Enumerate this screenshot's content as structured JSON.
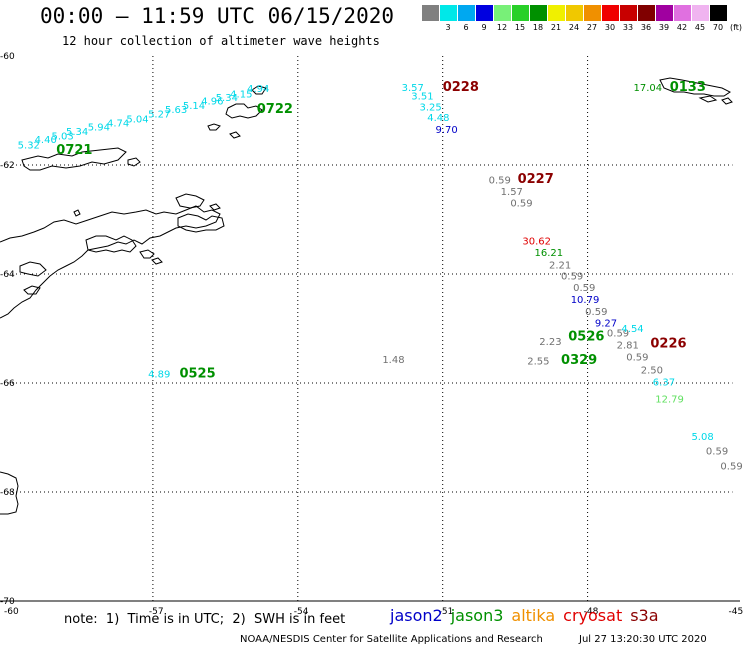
{
  "header": {
    "title": "00:00 – 11:59 UTC 06/15/2020",
    "subtitle": "12 hour collection of altimeter wave heights"
  },
  "color_scale": {
    "bins": [
      {
        "label": "",
        "color": "#808080"
      },
      {
        "label": "3",
        "color": "#00e8e8"
      },
      {
        "label": "6",
        "color": "#00a8f0"
      },
      {
        "label": "9",
        "color": "#0000e0"
      },
      {
        "label": "12",
        "color": "#78f078"
      },
      {
        "label": "15",
        "color": "#28d028"
      },
      {
        "label": "18",
        "color": "#009000"
      },
      {
        "label": "21",
        "color": "#f0f000"
      },
      {
        "label": "24",
        "color": "#f0c800"
      },
      {
        "label": "27",
        "color": "#f09000"
      },
      {
        "label": "30",
        "color": "#f00000"
      },
      {
        "label": "33",
        "color": "#c80000"
      },
      {
        "label": "36",
        "color": "#800000"
      },
      {
        "label": "39",
        "color": "#a000a0"
      },
      {
        "label": "42",
        "color": "#e070e0"
      },
      {
        "label": "45",
        "color": "#f0b4f0"
      },
      {
        "label": "70",
        "color": "#000000"
      }
    ],
    "unit": "(ft)"
  },
  "axes": {
    "lon_ticks": [
      "-60",
      "-57",
      "-54",
      "-51",
      "-48",
      "-45"
    ],
    "lat_ticks": [
      "-60",
      "-62",
      "-64",
      "-66",
      "-68",
      "-70"
    ]
  },
  "colors": {
    "cyan": "#00d8e8",
    "gray": "#707070",
    "blue": "#0000c8",
    "green": "#009000",
    "lightgreen": "#60e060",
    "red": "#e00000",
    "darkred": "#8b0000"
  },
  "observations": [
    {
      "text": "5.32",
      "lon": -59.8,
      "lat": -61.7,
      "c": "cyan"
    },
    {
      "text": "4.40",
      "lon": -59.45,
      "lat": -61.6,
      "c": "cyan"
    },
    {
      "text": "5.03",
      "lon": -59.1,
      "lat": -61.53,
      "c": "cyan"
    },
    {
      "text": "5.34",
      "lon": -58.8,
      "lat": -61.45,
      "c": "cyan"
    },
    {
      "text": "5.94",
      "lon": -58.35,
      "lat": -61.37,
      "c": "cyan"
    },
    {
      "text": "4.74",
      "lon": -57.95,
      "lat": -61.29,
      "c": "cyan"
    },
    {
      "text": "5.04",
      "lon": -57.55,
      "lat": -61.22,
      "c": "cyan"
    },
    {
      "text": "5.27",
      "lon": -57.1,
      "lat": -61.13,
      "c": "cyan"
    },
    {
      "text": "5.63",
      "lon": -56.75,
      "lat": -61.05,
      "c": "cyan"
    },
    {
      "text": "5.14",
      "lon": -56.38,
      "lat": -60.97,
      "c": "cyan"
    },
    {
      "text": "4.96",
      "lon": -56.0,
      "lat": -60.89,
      "c": "cyan"
    },
    {
      "text": "5.34",
      "lon": -55.7,
      "lat": -60.83,
      "c": "cyan"
    },
    {
      "text": "4.15",
      "lon": -55.4,
      "lat": -60.76,
      "c": "cyan"
    },
    {
      "text": "4.94",
      "lon": -55.05,
      "lat": -60.66,
      "c": "cyan"
    },
    {
      "text": "3.57",
      "lon": -51.85,
      "lat": -60.64,
      "c": "cyan"
    },
    {
      "text": "3.51",
      "lon": -51.65,
      "lat": -60.8,
      "c": "cyan"
    },
    {
      "text": "3.25",
      "lon": -51.48,
      "lat": -61.0,
      "c": "cyan"
    },
    {
      "text": "4.48",
      "lon": -51.32,
      "lat": -61.19,
      "c": "cyan"
    },
    {
      "text": "9.70",
      "lon": -51.15,
      "lat": -61.41,
      "c": "blue"
    },
    {
      "text": "17.04",
      "lon": -47.05,
      "lat": -60.64,
      "c": "green"
    },
    {
      "text": "0.59",
      "lon": -50.05,
      "lat": -62.34,
      "c": "gray"
    },
    {
      "text": "1.57",
      "lon": -49.8,
      "lat": -62.55,
      "c": "gray"
    },
    {
      "text": "0.59",
      "lon": -49.6,
      "lat": -62.76,
      "c": "gray"
    },
    {
      "text": "30.62",
      "lon": -49.35,
      "lat": -63.46,
      "c": "red"
    },
    {
      "text": "16.21",
      "lon": -49.1,
      "lat": -63.67,
      "c": "green"
    },
    {
      "text": "2.21",
      "lon": -48.8,
      "lat": -63.9,
      "c": "gray"
    },
    {
      "text": "0.59",
      "lon": -48.55,
      "lat": -64.1,
      "c": "gray"
    },
    {
      "text": "0.59",
      "lon": -48.3,
      "lat": -64.31,
      "c": "gray"
    },
    {
      "text": "10.79",
      "lon": -48.35,
      "lat": -64.53,
      "c": "blue"
    },
    {
      "text": "0.59",
      "lon": -48.05,
      "lat": -64.75,
      "c": "gray"
    },
    {
      "text": "9.27",
      "lon": -47.85,
      "lat": -64.96,
      "c": "blue"
    },
    {
      "text": "0.59",
      "lon": -47.6,
      "lat": -65.15,
      "c": "gray"
    },
    {
      "text": "4.54",
      "lon": -47.3,
      "lat": -65.06,
      "c": "cyan"
    },
    {
      "text": "2.23",
      "lon": -49.0,
      "lat": -65.3,
      "c": "gray"
    },
    {
      "text": "2.81",
      "lon": -47.4,
      "lat": -65.37,
      "c": "gray"
    },
    {
      "text": "0.59",
      "lon": -47.2,
      "lat": -65.59,
      "c": "gray"
    },
    {
      "text": "2.55",
      "lon": -49.25,
      "lat": -65.66,
      "c": "gray"
    },
    {
      "text": "1.48",
      "lon": -52.25,
      "lat": -65.63,
      "c": "gray"
    },
    {
      "text": "2.50",
      "lon": -46.9,
      "lat": -65.83,
      "c": "gray"
    },
    {
      "text": "6.37",
      "lon": -46.65,
      "lat": -66.05,
      "c": "cyan"
    },
    {
      "text": "12.79",
      "lon": -46.6,
      "lat": -66.36,
      "c": "lightgreen"
    },
    {
      "text": "5.08",
      "lon": -45.85,
      "lat": -67.05,
      "c": "cyan"
    },
    {
      "text": "0.59",
      "lon": -45.55,
      "lat": -67.31,
      "c": "gray"
    },
    {
      "text": "0.59",
      "lon": -45.25,
      "lat": -67.59,
      "c": "gray"
    },
    {
      "text": "4.89",
      "lon": -57.1,
      "lat": -65.9,
      "c": "cyan"
    }
  ],
  "track_labels": [
    {
      "text": "0721",
      "lon": -59.0,
      "lat": -61.8,
      "c": "green"
    },
    {
      "text": "0722",
      "lon": -54.85,
      "lat": -61.05,
      "c": "green"
    },
    {
      "text": "0228",
      "lon": -51.0,
      "lat": -60.64,
      "c": "darkred"
    },
    {
      "text": "0133",
      "lon": -46.3,
      "lat": -60.64,
      "c": "green"
    },
    {
      "text": "0227",
      "lon": -49.45,
      "lat": -62.33,
      "c": "darkred"
    },
    {
      "text": "0526",
      "lon": -48.4,
      "lat": -65.22,
      "c": "green"
    },
    {
      "text": "0226",
      "lon": -46.7,
      "lat": -65.35,
      "c": "darkred"
    },
    {
      "text": "0329",
      "lon": -48.55,
      "lat": -65.65,
      "c": "green"
    },
    {
      "text": "0525",
      "lon": -56.45,
      "lat": -65.9,
      "c": "green"
    }
  ],
  "footer": {
    "note": "note:  1)  Time is in UTC;  2)  SWH is in feet",
    "satellites": [
      {
        "name": "jason2",
        "color": "#0000c8"
      },
      {
        "name": "jason3",
        "color": "#009000"
      },
      {
        "name": "altika",
        "color": "#f09000"
      },
      {
        "name": "cryosat",
        "color": "#e00000"
      },
      {
        "name": "s3a",
        "color": "#8b0000"
      }
    ],
    "credit": "NOAA/NESDIS Center for Satellite Applications and Research",
    "timestamp": "Jul 27 13:20:30 UTC 2020"
  }
}
